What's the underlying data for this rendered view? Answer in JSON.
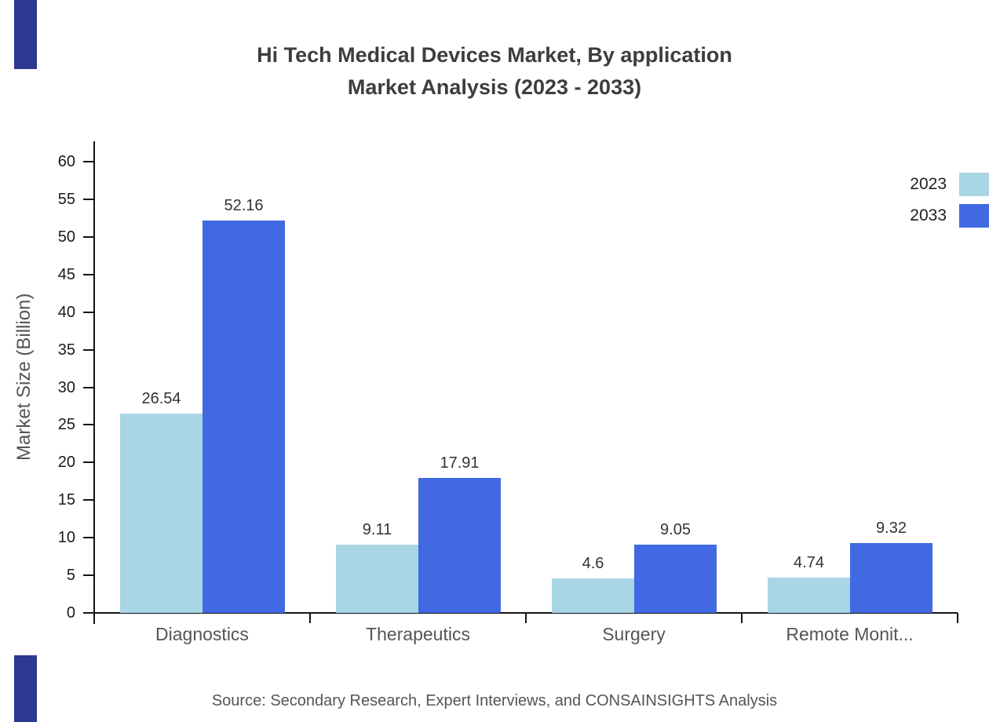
{
  "title": {
    "line1": "Hi Tech Medical Devices Market, By application",
    "line2": "Market Analysis (2023 - 2033)"
  },
  "source": "Source: Secondary Research, Expert Interviews, and CONSAINSIGHTS Analysis",
  "legend": [
    {
      "label": "2023",
      "color": "#a9d6e5"
    },
    {
      "label": "2033",
      "color": "#4169e1"
    }
  ],
  "colors": {
    "accent_strip": "#2b3990",
    "series_2023": "#a9d6e5",
    "series_2033": "#4169e1",
    "axis": "#151515",
    "title_text": "#3d3d3d",
    "muted_text": "#555555"
  },
  "chart_data": {
    "type": "bar",
    "title": "Hi Tech Medical Devices Market, By application Market Analysis (2023 - 2033)",
    "categories": [
      "Diagnostics",
      "Therapeutics",
      "Surgery",
      "Remote Monit..."
    ],
    "series": [
      {
        "name": "2023",
        "color": "#a9d6e5",
        "values": [
          26.54,
          9.11,
          4.6,
          4.74
        ]
      },
      {
        "name": "2033",
        "color": "#4169e1",
        "values": [
          52.16,
          17.91,
          9.05,
          9.32
        ]
      }
    ],
    "xlabel": "",
    "ylabel": "Market Size (Billion)",
    "ylim": [
      0,
      60
    ],
    "ytick_step": 5,
    "grid": false,
    "legend_position": "top-right",
    "value_labels": true
  }
}
